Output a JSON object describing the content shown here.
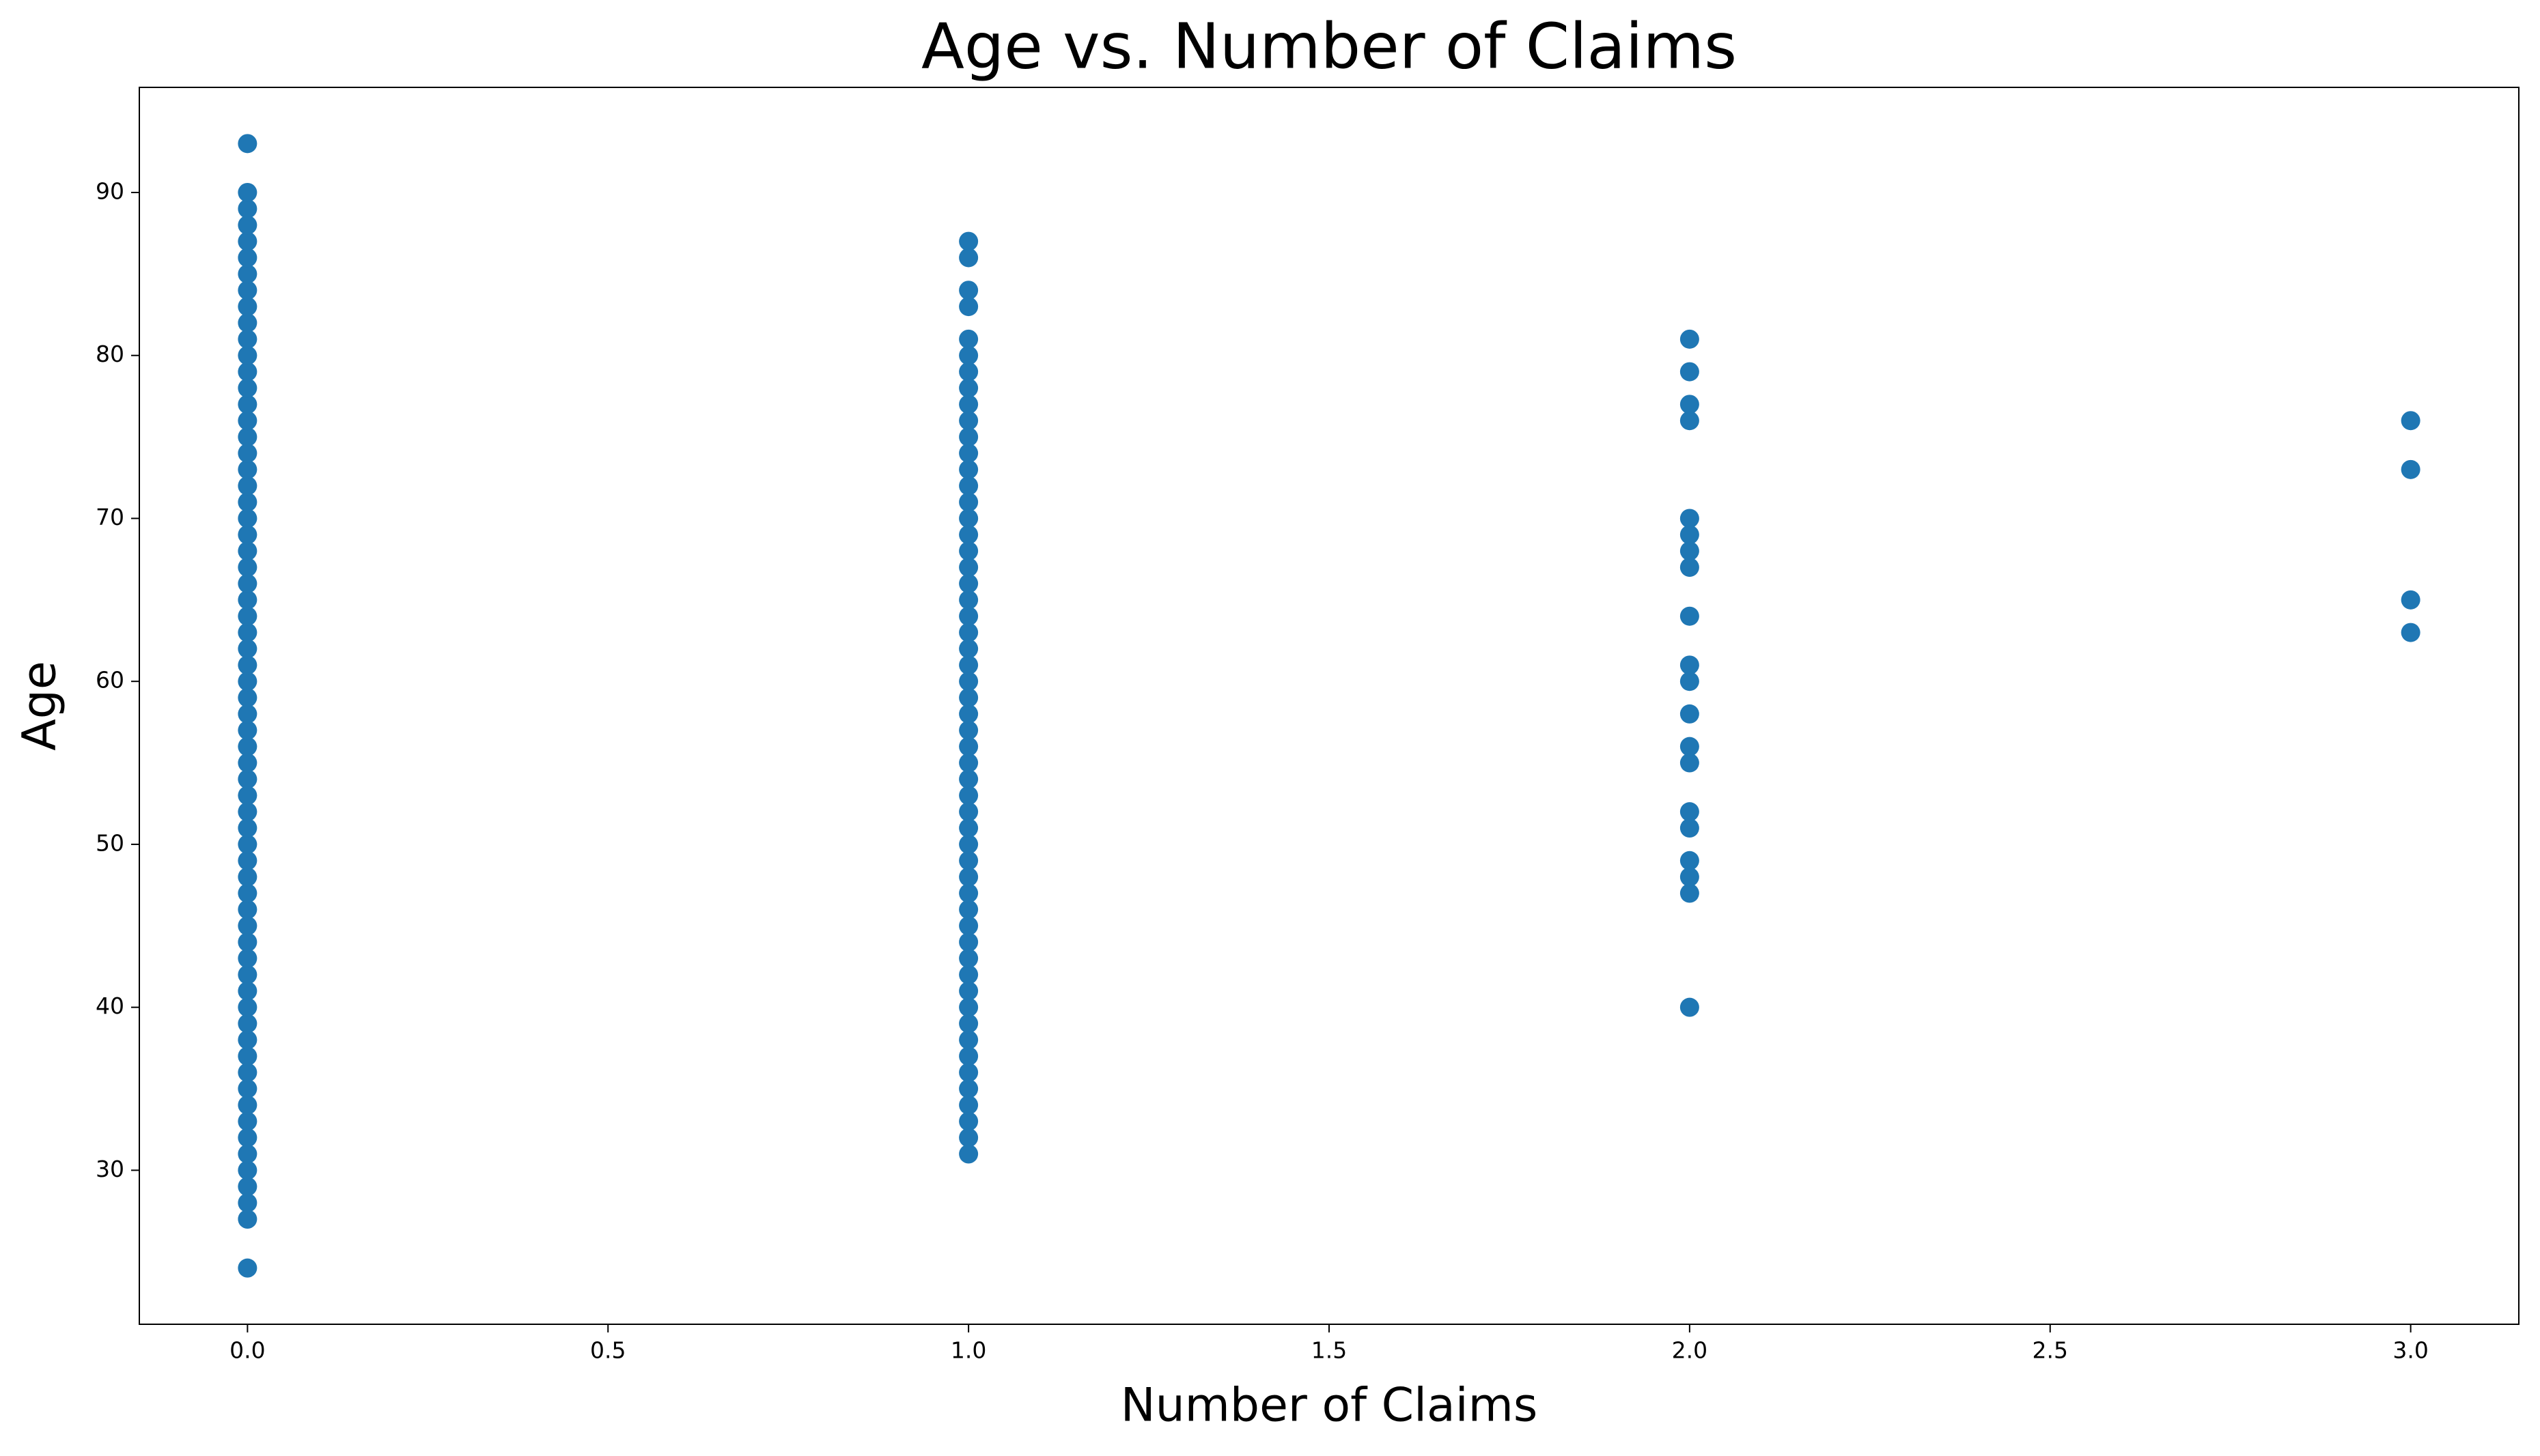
{
  "chart_data": {
    "type": "scatter",
    "title": "Age vs. Number of Claims",
    "x_label": "Number of Claims",
    "y_label": "Age",
    "color": "#1f77b4",
    "x": [
      0,
      0,
      0,
      0,
      0,
      0,
      0,
      0,
      0,
      0,
      0,
      0,
      0,
      0,
      0,
      0,
      0,
      0,
      0,
      0,
      0,
      0,
      0,
      0,
      0,
      0,
      0,
      0,
      0,
      0,
      0,
      0,
      0,
      0,
      0,
      0,
      0,
      0,
      0,
      0,
      0,
      0,
      0,
      0,
      0,
      0,
      0,
      0,
      0,
      0,
      0,
      0,
      0,
      0,
      0,
      0,
      0,
      0,
      0,
      0,
      0,
      0,
      0,
      0,
      0,
      0,
      1,
      1,
      1,
      1,
      1,
      1,
      1,
      1,
      1,
      1,
      1,
      1,
      1,
      1,
      1,
      1,
      1,
      1,
      1,
      1,
      1,
      1,
      1,
      1,
      1,
      1,
      1,
      1,
      1,
      1,
      1,
      1,
      1,
      1,
      1,
      1,
      1,
      1,
      1,
      1,
      1,
      1,
      1,
      1,
      1,
      1,
      1,
      1,
      1,
      1,
      1,
      1,
      1,
      1,
      1,
      2,
      2,
      2,
      2,
      2,
      2,
      2,
      2,
      2,
      2,
      2,
      2,
      2,
      2,
      2,
      2,
      2,
      2,
      2,
      2,
      3,
      3,
      3,
      3
    ],
    "values": [
      24,
      27,
      28,
      29,
      30,
      31,
      32,
      33,
      34,
      35,
      36,
      37,
      38,
      39,
      40,
      41,
      42,
      43,
      44,
      45,
      46,
      47,
      48,
      49,
      50,
      51,
      52,
      53,
      54,
      55,
      56,
      57,
      58,
      59,
      60,
      61,
      62,
      63,
      64,
      65,
      66,
      67,
      68,
      69,
      70,
      71,
      72,
      73,
      74,
      75,
      76,
      77,
      78,
      79,
      80,
      81,
      82,
      83,
      84,
      85,
      86,
      87,
      88,
      89,
      90,
      93,
      31,
      32,
      33,
      34,
      35,
      36,
      37,
      38,
      39,
      40,
      41,
      42,
      43,
      44,
      45,
      46,
      47,
      48,
      49,
      50,
      51,
      52,
      53,
      54,
      55,
      56,
      57,
      58,
      59,
      60,
      61,
      62,
      63,
      64,
      65,
      66,
      67,
      68,
      69,
      70,
      71,
      72,
      73,
      74,
      75,
      76,
      77,
      78,
      79,
      80,
      81,
      83,
      84,
      86,
      87,
      40,
      47,
      48,
      49,
      51,
      52,
      55,
      56,
      58,
      60,
      61,
      64,
      67,
      68,
      69,
      70,
      76,
      77,
      79,
      81,
      63,
      65,
      73,
      76
    ],
    "xlim": [
      -0.15,
      3.15
    ],
    "ylim": [
      20.55,
      96.45
    ],
    "xticks": [
      {
        "value": 0,
        "label": "0.0"
      },
      {
        "value": 0.5,
        "label": "0.5"
      },
      {
        "value": 1,
        "label": "1.0"
      },
      {
        "value": 1.5,
        "label": "1.5"
      },
      {
        "value": 2,
        "label": "2.0"
      },
      {
        "value": 2.5,
        "label": "2.5"
      },
      {
        "value": 3,
        "label": "3.0"
      }
    ],
    "yticks": [
      30,
      40,
      50,
      60,
      70,
      80,
      90
    ]
  }
}
